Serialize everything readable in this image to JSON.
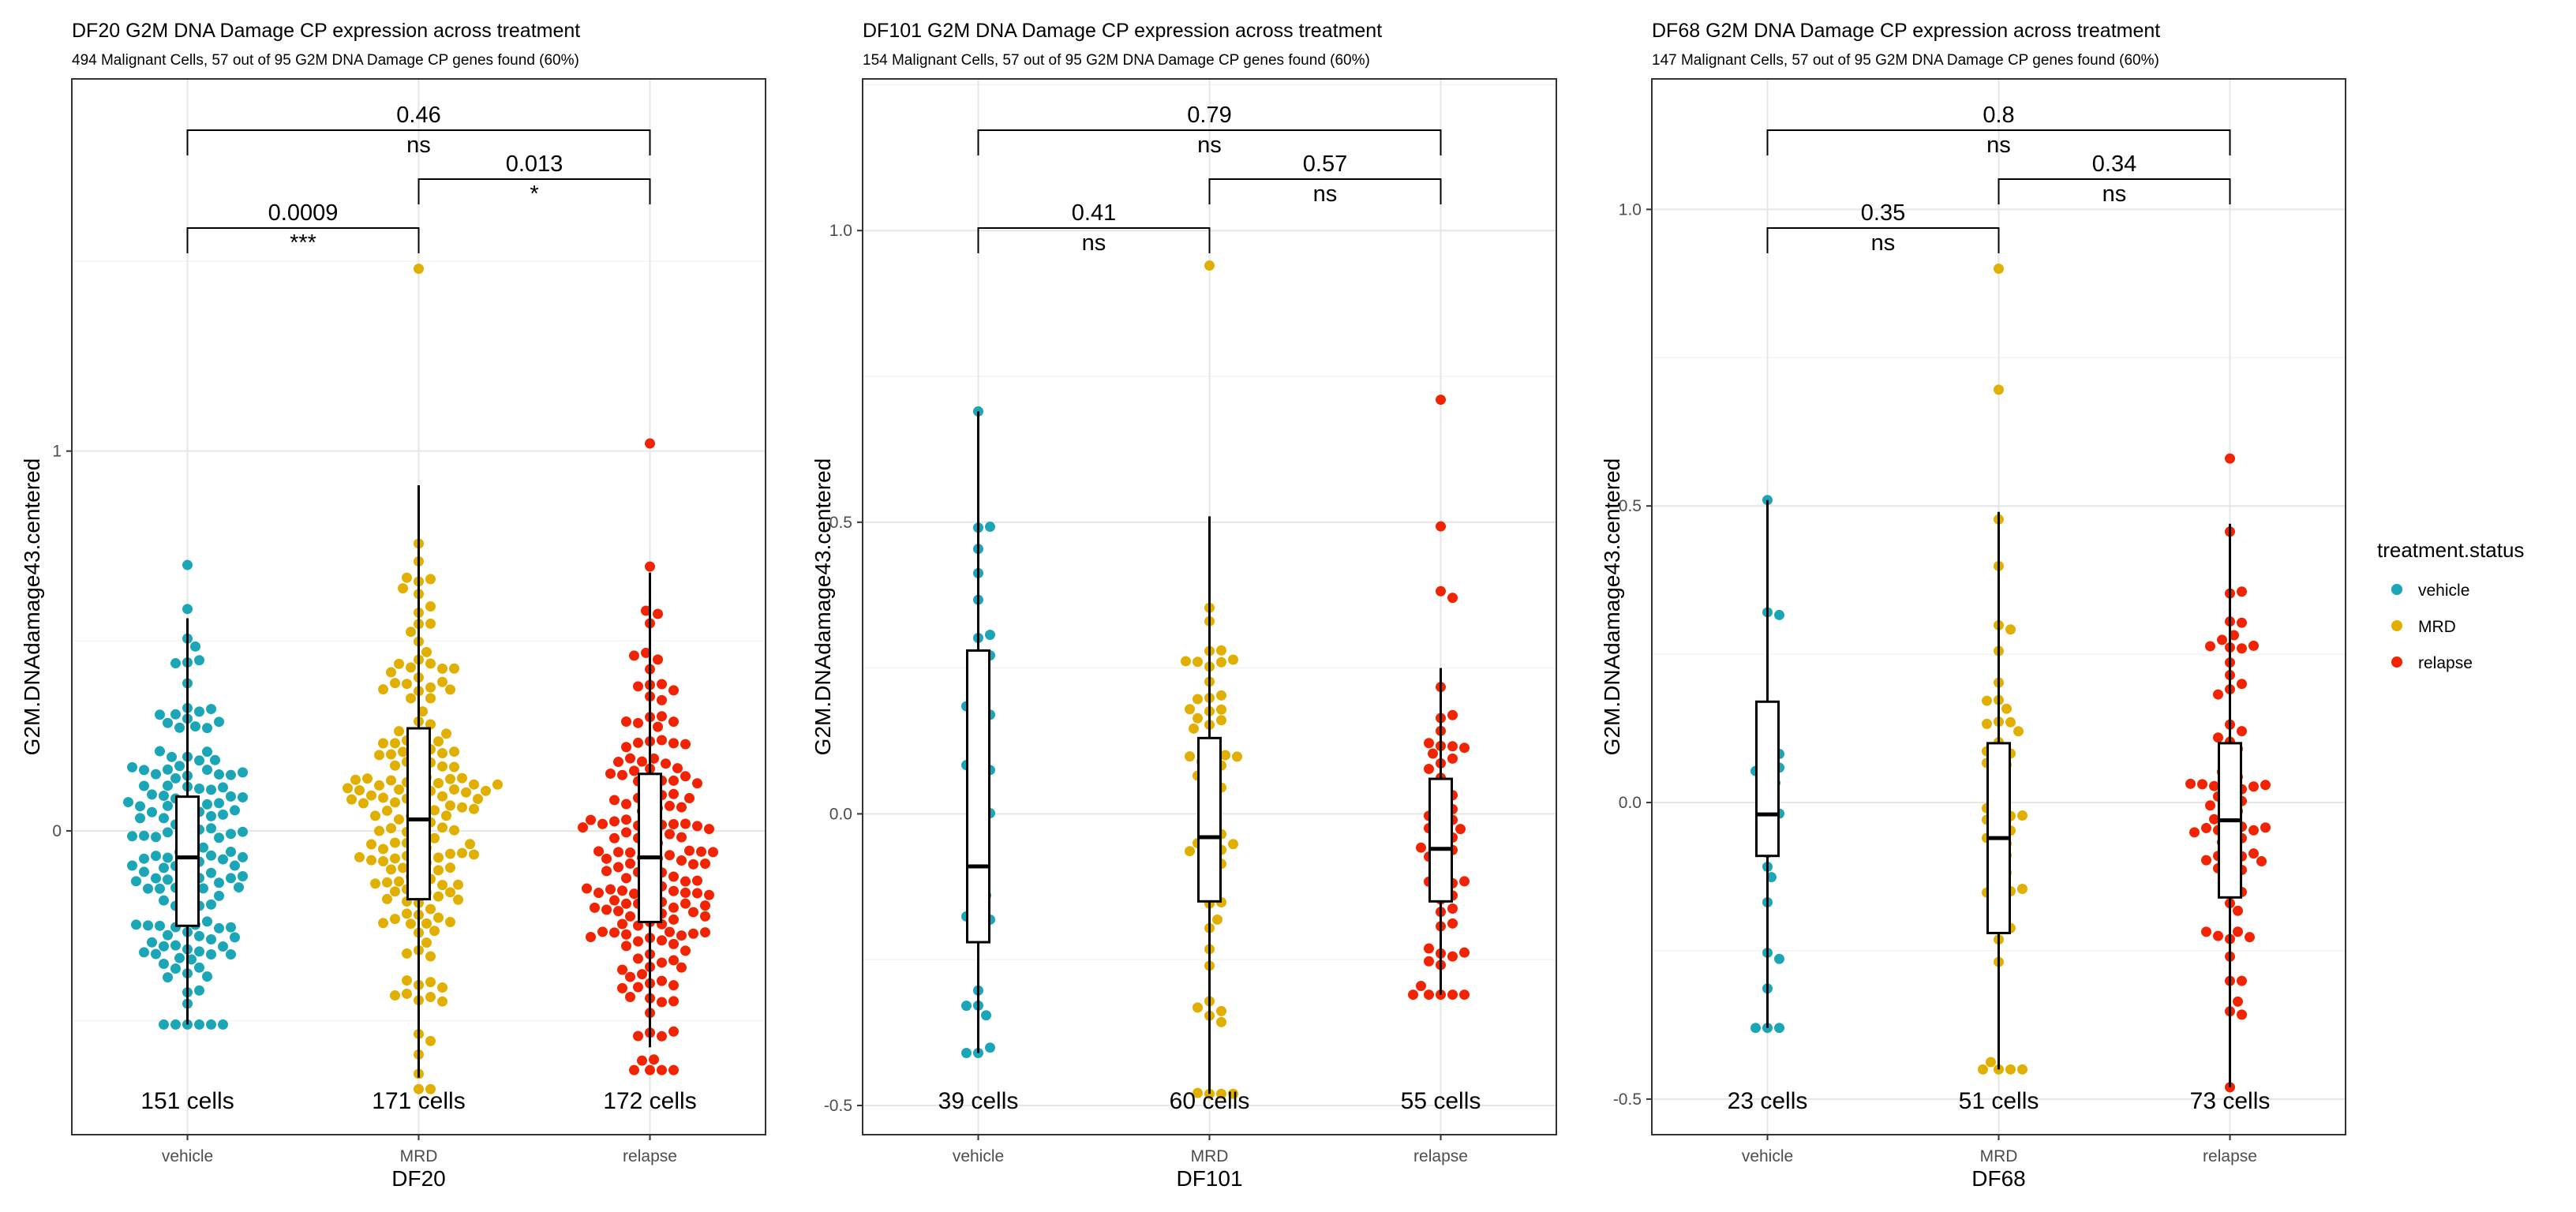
{
  "figure": {
    "legend": {
      "title": "treatment.status",
      "entries": [
        {
          "label": "vehicle",
          "color": "#1AA6B7"
        },
        {
          "label": "MRD",
          "color": "#E1AF00"
        },
        {
          "label": "relapse",
          "color": "#F22300"
        }
      ]
    }
  },
  "chart_data": [
    {
      "type": "scatter",
      "subtype": "beeswarm-boxplot",
      "title": "DF20 G2M DNA Damage CP expression across treatment",
      "subtitle": "494 Malignant Cells, 57 out of 95 G2M DNA Damage CP genes found (60%)",
      "xlabel": "DF20",
      "ylabel": "G2M.DNAdamage43.centered",
      "categories": [
        "vehicle",
        "MRD",
        "relapse"
      ],
      "ylim": [
        -0.8,
        1.98
      ],
      "yticks": [
        0,
        1
      ],
      "ytick_labels": [
        "0",
        "1"
      ],
      "cell_counts": [
        "151 cells",
        "171 cells",
        "172 cells"
      ],
      "boxes": [
        {
          "category": "vehicle",
          "min": -0.51,
          "q1": -0.25,
          "median": -0.07,
          "q3": 0.09,
          "max": 0.56
        },
        {
          "category": "MRD",
          "min": -0.65,
          "q1": -0.18,
          "median": 0.03,
          "q3": 0.27,
          "max": 0.91
        },
        {
          "category": "relapse",
          "min": -0.57,
          "q1": -0.24,
          "median": -0.07,
          "q3": 0.15,
          "max": 0.68
        }
      ],
      "series": [
        {
          "name": "vehicle",
          "n": 151,
          "mean": -0.06,
          "sd": 0.24,
          "min": -0.51,
          "max": 0.7
        },
        {
          "name": "MRD",
          "n": 171,
          "mean": 0.04,
          "sd": 0.3,
          "min": -0.68,
          "max": 1.48
        },
        {
          "name": "relapse",
          "n": 172,
          "mean": -0.05,
          "sd": 0.27,
          "min": -0.63,
          "max": 1.02
        }
      ],
      "comparisons": [
        {
          "groups": [
            "vehicle",
            "MRD"
          ],
          "p": "0.0009",
          "label": "***",
          "level": 1
        },
        {
          "groups": [
            "MRD",
            "relapse"
          ],
          "p": "0.013",
          "label": "*",
          "level": 2
        },
        {
          "groups": [
            "vehicle",
            "relapse"
          ],
          "p": "0.46",
          "label": "ns",
          "level": 3
        }
      ]
    },
    {
      "type": "scatter",
      "subtype": "beeswarm-boxplot",
      "title": "DF101 G2M DNA Damage CP expression across treatment",
      "subtitle": "154 Malignant Cells, 57 out of 95 G2M DNA Damage CP genes found (60%)",
      "xlabel": "DF101",
      "ylabel": "G2M.DNAdamage43.centered",
      "categories": [
        "vehicle",
        "MRD",
        "relapse"
      ],
      "ylim": [
        -0.55,
        1.26
      ],
      "yticks": [
        -0.5,
        0,
        0.5,
        1
      ],
      "ytick_labels": [
        "-0.5",
        "0.0",
        "0.5",
        "1.0"
      ],
      "cell_counts": [
        "39 cells",
        "60 cells",
        "55 cells"
      ],
      "boxes": [
        {
          "category": "vehicle",
          "min": -0.41,
          "q1": -0.22,
          "median": -0.09,
          "q3": 0.28,
          "max": 0.69
        },
        {
          "category": "MRD",
          "min": -0.48,
          "q1": -0.15,
          "median": -0.04,
          "q3": 0.13,
          "max": 0.51
        },
        {
          "category": "relapse",
          "min": -0.31,
          "q1": -0.15,
          "median": -0.06,
          "q3": 0.06,
          "max": 0.25
        }
      ],
      "series": [
        {
          "name": "vehicle",
          "n": 39,
          "mean": 0.0,
          "sd": 0.27,
          "min": -0.41,
          "max": 0.69
        },
        {
          "name": "MRD",
          "n": 60,
          "mean": 0.0,
          "sd": 0.2,
          "min": -0.48,
          "max": 0.94
        },
        {
          "name": "relapse",
          "n": 55,
          "mean": -0.03,
          "sd": 0.19,
          "min": -0.31,
          "max": 0.71
        }
      ],
      "comparisons": [
        {
          "groups": [
            "vehicle",
            "MRD"
          ],
          "p": "0.41",
          "label": "ns",
          "level": 1
        },
        {
          "groups": [
            "MRD",
            "relapse"
          ],
          "p": "0.57",
          "label": "ns",
          "level": 2
        },
        {
          "groups": [
            "vehicle",
            "relapse"
          ],
          "p": "0.79",
          "label": "ns",
          "level": 3
        }
      ]
    },
    {
      "type": "scatter",
      "subtype": "beeswarm-boxplot",
      "title": "DF68 G2M DNA Damage CP expression across treatment",
      "subtitle": "147 Malignant Cells, 57 out of 95 G2M DNA Damage CP genes found (60%)",
      "xlabel": "DF68",
      "ylabel": "G2M.DNAdamage43.centered",
      "categories": [
        "vehicle",
        "MRD",
        "relapse"
      ],
      "ylim": [
        -0.56,
        1.22
      ],
      "yticks": [
        -0.5,
        0,
        0.5,
        1
      ],
      "ytick_labels": [
        "-0.5",
        "0.0",
        "0.5",
        "1.0"
      ],
      "cell_counts": [
        "23 cells",
        "51 cells",
        "73 cells"
      ],
      "boxes": [
        {
          "category": "vehicle",
          "min": -0.38,
          "q1": -0.09,
          "median": -0.02,
          "q3": 0.17,
          "max": 0.51
        },
        {
          "category": "MRD",
          "min": -0.45,
          "q1": -0.22,
          "median": -0.06,
          "q3": 0.1,
          "max": 0.49
        },
        {
          "category": "relapse",
          "min": -0.48,
          "q1": -0.16,
          "median": -0.03,
          "q3": 0.1,
          "max": 0.47
        }
      ],
      "series": [
        {
          "name": "vehicle",
          "n": 23,
          "mean": 0.0,
          "sd": 0.18,
          "min": -0.38,
          "max": 0.51
        },
        {
          "name": "MRD",
          "n": 51,
          "mean": -0.03,
          "sd": 0.24,
          "min": -0.45,
          "max": 0.9
        },
        {
          "name": "relapse",
          "n": 73,
          "mean": -0.02,
          "sd": 0.19,
          "min": -0.48,
          "max": 0.58
        }
      ],
      "comparisons": [
        {
          "groups": [
            "vehicle",
            "MRD"
          ],
          "p": "0.35",
          "label": "ns",
          "level": 1
        },
        {
          "groups": [
            "MRD",
            "relapse"
          ],
          "p": "0.34",
          "label": "ns",
          "level": 2
        },
        {
          "groups": [
            "vehicle",
            "relapse"
          ],
          "p": "0.8",
          "label": "ns",
          "level": 3
        }
      ]
    }
  ]
}
